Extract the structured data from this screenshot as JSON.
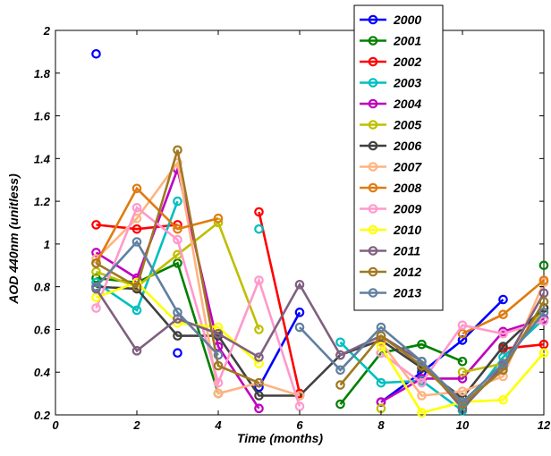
{
  "chart_data": {
    "type": "line",
    "xlabel": "Time (months)",
    "ylabel": "AOD 440nm (unitless)",
    "xlim": [
      0,
      12
    ],
    "ylim": [
      0.2,
      2
    ],
    "xticks": [
      "0",
      "2",
      "4",
      "6",
      "8",
      "10",
      "12"
    ],
    "yticks": [
      "0.2",
      "0.4",
      "0.6",
      "0.8",
      "1",
      "1.2",
      "1.4",
      "1.6",
      "1.8",
      "2"
    ],
    "grid": false,
    "legend_position": "top-right",
    "series": [
      {
        "name": "2000",
        "color": "#0000ff",
        "points": [
          [
            1,
            1.89
          ],
          [
            3,
            0.49
          ],
          [
            5,
            0.33
          ],
          [
            6,
            0.68
          ],
          [
            8,
            0.26
          ],
          [
            9,
            0.4
          ],
          [
            10,
            0.55
          ],
          [
            11,
            0.74
          ]
        ]
      },
      {
        "name": "2001",
        "color": "#008000",
        "points": [
          [
            1,
            0.84
          ],
          [
            2,
            0.82
          ],
          [
            3,
            0.91
          ],
          [
            4,
            0.3
          ],
          [
            7,
            0.25
          ],
          [
            8,
            0.49
          ],
          [
            9,
            0.53
          ],
          [
            10,
            0.45
          ],
          [
            12,
            0.9
          ]
        ]
      },
      {
        "name": "2002",
        "color": "#ff0000",
        "points": [
          [
            1,
            1.09
          ],
          [
            2,
            1.07
          ],
          [
            3,
            1.09
          ],
          [
            5,
            1.15
          ],
          [
            6,
            0.3
          ],
          [
            11,
            0.51
          ],
          [
            12,
            0.53
          ]
        ]
      },
      {
        "name": "2003",
        "color": "#00bfbf",
        "points": [
          [
            1,
            0.82
          ],
          [
            2,
            0.69
          ],
          [
            3,
            1.2
          ],
          [
            5,
            1.07
          ],
          [
            7,
            0.54
          ],
          [
            8,
            0.35
          ],
          [
            9,
            0.36
          ],
          [
            10,
            0.22
          ],
          [
            11,
            0.47
          ],
          [
            12,
            0.65
          ]
        ]
      },
      {
        "name": "2004",
        "color": "#bf00bf",
        "points": [
          [
            1,
            0.96
          ],
          [
            2,
            0.84
          ],
          [
            3,
            1.35
          ],
          [
            4,
            0.52
          ],
          [
            5,
            0.23
          ],
          [
            8,
            0.26
          ],
          [
            9,
            0.37
          ],
          [
            10,
            0.37
          ],
          [
            11,
            0.59
          ],
          [
            12,
            0.65
          ]
        ]
      },
      {
        "name": "2005",
        "color": "#bfbf00",
        "points": [
          [
            1,
            0.87
          ],
          [
            2,
            0.8
          ],
          [
            3,
            0.95
          ],
          [
            4,
            1.1
          ],
          [
            5,
            0.6
          ],
          [
            8,
            0.23
          ],
          [
            10,
            0.4
          ],
          [
            11,
            0.44
          ],
          [
            12,
            0.7
          ]
        ]
      },
      {
        "name": "2006",
        "color": "#404040",
        "points": [
          [
            1,
            0.8
          ],
          [
            2,
            0.79
          ],
          [
            3,
            0.57
          ],
          [
            4,
            0.57
          ],
          [
            5,
            0.29
          ],
          [
            6,
            0.29
          ],
          [
            7,
            0.48
          ],
          [
            8,
            0.55
          ],
          [
            9,
            0.42
          ],
          [
            10,
            0.28
          ],
          [
            11,
            0.52
          ],
          [
            12,
            0.7
          ]
        ]
      },
      {
        "name": "2007",
        "color": "#ffb380",
        "points": [
          [
            1,
            0.93
          ],
          [
            2,
            1.12
          ],
          [
            3,
            1.38
          ],
          [
            4,
            0.3
          ],
          [
            5,
            0.35
          ],
          [
            6,
            0.29
          ],
          [
            8,
            0.54
          ],
          [
            9,
            0.29
          ],
          [
            10,
            0.31
          ],
          [
            11,
            0.38
          ],
          [
            12,
            0.82
          ]
        ]
      },
      {
        "name": "2008",
        "color": "#e07b10",
        "points": [
          [
            1,
            0.91
          ],
          [
            2,
            1.26
          ],
          [
            3,
            1.07
          ],
          [
            4,
            1.12
          ],
          [
            8,
            0.55
          ],
          [
            10,
            0.58
          ],
          [
            11,
            0.67
          ],
          [
            12,
            0.83
          ]
        ]
      },
      {
        "name": "2009",
        "color": "#ff99cc",
        "points": [
          [
            1,
            0.7
          ],
          [
            2,
            1.17
          ],
          [
            3,
            1.02
          ],
          [
            4,
            0.35
          ],
          [
            5,
            0.83
          ],
          [
            6,
            0.24
          ],
          [
            8,
            0.49
          ],
          [
            9,
            0.35
          ],
          [
            10,
            0.62
          ],
          [
            11,
            0.58
          ],
          [
            12,
            0.64
          ]
        ]
      },
      {
        "name": "2010",
        "color": "#ffff00",
        "points": [
          [
            1,
            0.75
          ],
          [
            2,
            0.82
          ],
          [
            3,
            0.63
          ],
          [
            4,
            0.61
          ],
          [
            5,
            0.44
          ],
          [
            8,
            0.52
          ],
          [
            9,
            0.21
          ],
          [
            10,
            0.26
          ],
          [
            11,
            0.27
          ],
          [
            12,
            0.49
          ]
        ]
      },
      {
        "name": "2011",
        "color": "#806080",
        "points": [
          [
            1,
            0.79
          ],
          [
            2,
            0.5
          ],
          [
            3,
            0.65
          ],
          [
            4,
            0.58
          ],
          [
            5,
            0.47
          ],
          [
            6,
            0.81
          ],
          [
            7,
            0.48
          ],
          [
            8,
            0.57
          ],
          [
            9,
            0.45
          ],
          [
            10,
            0.23
          ],
          [
            11,
            0.43
          ],
          [
            12,
            0.77
          ]
        ]
      },
      {
        "name": "2012",
        "color": "#a07820",
        "points": [
          [
            1,
            0.91
          ],
          [
            2,
            0.8
          ],
          [
            3,
            1.44
          ],
          [
            4,
            0.43
          ],
          [
            5,
            0.35
          ],
          [
            7,
            0.34
          ],
          [
            8,
            0.57
          ],
          [
            9,
            0.43
          ],
          [
            10,
            0.25
          ],
          [
            11,
            0.41
          ],
          [
            12,
            0.73
          ]
        ]
      },
      {
        "name": "2013",
        "color": "#6080a0",
        "points": [
          [
            1,
            0.8
          ],
          [
            2,
            1.01
          ],
          [
            3,
            0.68
          ],
          [
            4,
            0.48
          ],
          [
            6,
            0.61
          ],
          [
            7,
            0.41
          ],
          [
            8,
            0.61
          ],
          [
            9,
            0.45
          ],
          [
            10,
            0.26
          ],
          [
            11,
            0.44
          ],
          [
            12,
            0.68
          ]
        ]
      }
    ]
  }
}
